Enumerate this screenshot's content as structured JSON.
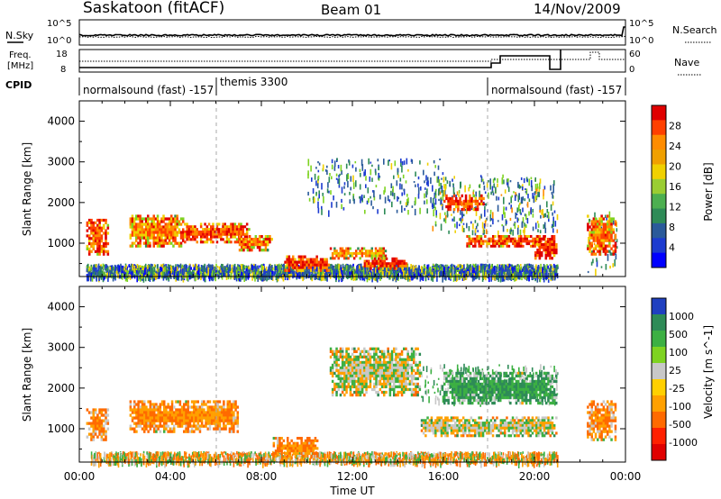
{
  "header": {
    "station": "Saskatoon (fitACF)",
    "beam": "Beam 01",
    "date": "14/Nov/2009"
  },
  "side_labels": {
    "nsky": "N.Sky",
    "freq_line1": "Freq.",
    "freq_line2": "[MHz]",
    "cpid": "CPID",
    "nsearch": "N.Search",
    "nave": "Nave"
  },
  "top_axis_ticks": {
    "sky_left": [
      "10^5",
      "10^0"
    ],
    "sky_right": [
      "10^5",
      "10^0"
    ],
    "freq_left": [
      "18",
      "8"
    ],
    "nave_right": [
      "60",
      "0"
    ]
  },
  "cpid_labels": [
    "normalsound (fast) -157",
    "themis 3300",
    "normalsound (fast) -157"
  ],
  "panels": {
    "power": {
      "ylabel": "Slant Range [km]",
      "colorbar_label": "Power [dB]",
      "colorbar_ticks": [
        "28",
        "24",
        "20",
        "16",
        "12",
        "8",
        "4"
      ],
      "colorbar_colors": [
        "#e00000",
        "#ff4000",
        "#ff8c00",
        "#f0a000",
        "#f0d000",
        "#9acd32",
        "#4caf50",
        "#2e8b57",
        "#2a5a9a",
        "#1c3bd0",
        "#0000ff"
      ]
    },
    "velocity": {
      "ylabel": "Slant Range [km]",
      "colorbar_label": "Velocity [m s^-1]",
      "colorbar_ticks": [
        "1000",
        "500",
        "100",
        "25",
        "-25",
        "-100",
        "-500",
        "-1000"
      ],
      "colorbar_colors": [
        "#2040c0",
        "#2e8b57",
        "#3cb043",
        "#7ed321",
        "#c8c8c8",
        "#ffd000",
        "#ffa000",
        "#ff6a00",
        "#ff2000",
        "#e00000"
      ]
    }
  },
  "xaxis": {
    "label": "Time UT",
    "ticks": [
      "00:00",
      "04:00",
      "08:00",
      "12:00",
      "16:00",
      "20:00",
      "00:00"
    ]
  },
  "chart_data": [
    {
      "type": "heatmap",
      "title": "Saskatoon (fitACF) Beam 01 14/Nov/2009 - Power",
      "xlabel": "Time UT",
      "ylabel": "Slant Range [km]",
      "zlabel": "Power [dB]",
      "xlim_hours": [
        0,
        24
      ],
      "ylim": [
        180,
        4500
      ],
      "yticks": [
        1000,
        2000,
        3000,
        4000
      ],
      "zticks": [
        4,
        8,
        12,
        16,
        20,
        24,
        28
      ],
      "regions": [
        {
          "t0": 0.3,
          "t1": 1.3,
          "r0": 700,
          "r1": 1600,
          "power": 26
        },
        {
          "t0": 2.2,
          "t1": 4.6,
          "r0": 900,
          "r1": 1700,
          "power": 24
        },
        {
          "t0": 4.6,
          "t1": 7.5,
          "r0": 1000,
          "r1": 1500,
          "power": 26
        },
        {
          "t0": 7.0,
          "t1": 8.5,
          "r0": 800,
          "r1": 1200,
          "power": 24
        },
        {
          "t0": 9.0,
          "t1": 11.0,
          "r0": 300,
          "r1": 700,
          "power": 28
        },
        {
          "t0": 11.0,
          "t1": 13.5,
          "r0": 600,
          "r1": 900,
          "power": 22
        },
        {
          "t0": 12.5,
          "t1": 14.5,
          "r0": 350,
          "r1": 650,
          "power": 28
        },
        {
          "t0": 16.0,
          "t1": 17.8,
          "r0": 1800,
          "r1": 2200,
          "power": 26
        },
        {
          "t0": 17.0,
          "t1": 20.5,
          "r0": 900,
          "r1": 1200,
          "power": 26
        },
        {
          "t0": 20.0,
          "t1": 21.0,
          "r0": 600,
          "r1": 1200,
          "power": 28
        },
        {
          "t0": 22.3,
          "t1": 23.6,
          "r0": 700,
          "r1": 1700,
          "power": 24
        }
      ]
    },
    {
      "type": "heatmap",
      "title": "Saskatoon (fitACF) Beam 01 14/Nov/2009 - Velocity",
      "xlabel": "Time UT",
      "ylabel": "Slant Range [km]",
      "zlabel": "Velocity [m s^-1]",
      "xlim_hours": [
        0,
        24
      ],
      "ylim": [
        180,
        4500
      ],
      "yticks": [
        1000,
        2000,
        3000,
        4000
      ],
      "zticks": [
        1000,
        500,
        100,
        25,
        -25,
        -100,
        -500,
        -1000
      ],
      "regions": [
        {
          "t0": 0.3,
          "t1": 1.3,
          "r0": 700,
          "r1": 1500,
          "velocity": -100
        },
        {
          "t0": 2.2,
          "t1": 7.0,
          "r0": 900,
          "r1": 1700,
          "velocity": -100
        },
        {
          "t0": 8.5,
          "t1": 10.5,
          "r0": 300,
          "r1": 800,
          "velocity": -100
        },
        {
          "t0": 11.0,
          "t1": 15.0,
          "r0": 1800,
          "r1": 3000,
          "velocity": 0
        },
        {
          "t0": 15.0,
          "t1": 21.0,
          "r0": 800,
          "r1": 1300,
          "velocity": 0
        },
        {
          "t0": 16.0,
          "t1": 21.0,
          "r0": 1600,
          "r1": 2400,
          "velocity": 100
        },
        {
          "t0": 22.3,
          "t1": 23.6,
          "r0": 700,
          "r1": 1700,
          "velocity": -100
        }
      ]
    }
  ]
}
